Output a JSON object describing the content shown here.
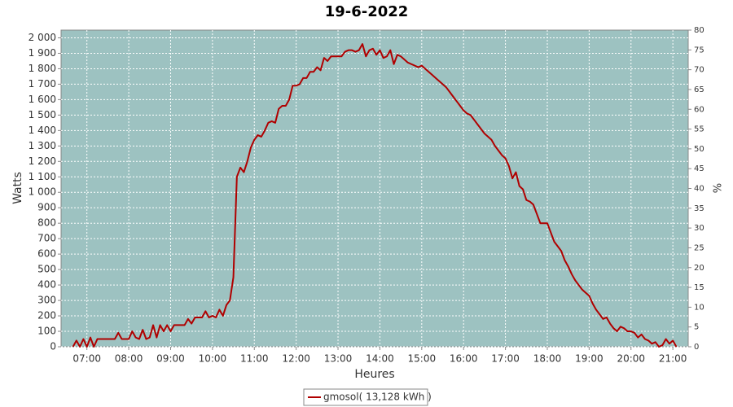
{
  "chart_data": {
    "type": "line",
    "title": "19-6-2022",
    "xlabel": "Heures",
    "ylabel": "Watts",
    "y2label": "%",
    "background": "#9dc2c1",
    "grid": true,
    "x": [
      "06:40",
      "06:45",
      "06:50",
      "06:55",
      "07:00",
      "07:05",
      "07:10",
      "07:15",
      "07:20",
      "07:25",
      "07:30",
      "07:35",
      "07:40",
      "07:45",
      "07:50",
      "07:55",
      "08:00",
      "08:05",
      "08:10",
      "08:15",
      "08:20",
      "08:25",
      "08:30",
      "08:35",
      "08:40",
      "08:45",
      "08:50",
      "08:55",
      "09:00",
      "09:05",
      "09:10",
      "09:15",
      "09:20",
      "09:25",
      "09:30",
      "09:35",
      "09:40",
      "09:45",
      "09:50",
      "09:55",
      "10:00",
      "10:05",
      "10:10",
      "10:15",
      "10:20",
      "10:25",
      "10:30",
      "10:35",
      "10:40",
      "10:45",
      "10:50",
      "10:55",
      "11:00",
      "11:05",
      "11:10",
      "11:15",
      "11:20",
      "11:25",
      "11:30",
      "11:35",
      "11:40",
      "11:45",
      "11:50",
      "11:55",
      "12:00",
      "12:05",
      "12:10",
      "12:15",
      "12:20",
      "12:25",
      "12:30",
      "12:35",
      "12:40",
      "12:45",
      "12:50",
      "12:55",
      "13:00",
      "13:05",
      "13:10",
      "13:15",
      "13:20",
      "13:25",
      "13:30",
      "13:35",
      "13:40",
      "13:45",
      "13:50",
      "13:55",
      "14:00",
      "14:05",
      "14:10",
      "14:15",
      "14:20",
      "14:25",
      "14:30",
      "14:35",
      "14:40",
      "14:45",
      "14:50",
      "14:55",
      "15:00",
      "15:05",
      "15:10",
      "15:15",
      "15:20",
      "15:25",
      "15:30",
      "15:35",
      "15:40",
      "15:45",
      "15:50",
      "15:55",
      "16:00",
      "16:05",
      "16:10",
      "16:15",
      "16:20",
      "16:25",
      "16:30",
      "16:35",
      "16:40",
      "16:45",
      "16:50",
      "16:55",
      "17:00",
      "17:05",
      "17:10",
      "17:15",
      "17:20",
      "17:25",
      "17:30",
      "17:35",
      "17:40",
      "17:45",
      "17:50",
      "17:55",
      "18:00",
      "18:05",
      "18:10",
      "18:15",
      "18:20",
      "18:25",
      "18:30",
      "18:35",
      "18:40",
      "18:45",
      "18:50",
      "18:55",
      "19:00",
      "19:05",
      "19:10",
      "19:15",
      "19:20",
      "19:25",
      "19:30",
      "19:35",
      "19:40",
      "19:45",
      "19:50",
      "19:55",
      "20:00",
      "20:05",
      "20:10",
      "20:15",
      "20:20",
      "20:25",
      "20:30",
      "20:35",
      "20:40",
      "20:45",
      "20:50",
      "20:55",
      "21:00",
      "21:05"
    ],
    "series": [
      {
        "name": "gmosol( 13,128 kWh )",
        "color": "#b00000",
        "values": [
          0,
          40,
          0,
          50,
          0,
          60,
          0,
          50,
          50,
          50,
          50,
          50,
          50,
          90,
          50,
          50,
          50,
          100,
          60,
          50,
          110,
          50,
          60,
          140,
          60,
          140,
          100,
          140,
          100,
          140,
          140,
          140,
          140,
          180,
          150,
          190,
          190,
          190,
          230,
          190,
          200,
          190,
          240,
          200,
          270,
          300,
          450,
          1100,
          1160,
          1130,
          1200,
          1290,
          1340,
          1370,
          1360,
          1400,
          1450,
          1460,
          1450,
          1540,
          1560,
          1560,
          1600,
          1690,
          1690,
          1700,
          1740,
          1740,
          1780,
          1780,
          1810,
          1790,
          1870,
          1850,
          1880,
          1880,
          1880,
          1880,
          1910,
          1920,
          1920,
          1910,
          1920,
          1960,
          1880,
          1920,
          1930,
          1890,
          1920,
          1870,
          1880,
          1920,
          1830,
          1890,
          1880,
          1860,
          1840,
          1830,
          1820,
          1810,
          1820,
          1800,
          1780,
          1760,
          1740,
          1720,
          1700,
          1680,
          1650,
          1620,
          1590,
          1560,
          1530,
          1510,
          1500,
          1470,
          1440,
          1410,
          1380,
          1360,
          1340,
          1300,
          1270,
          1240,
          1220,
          1170,
          1090,
          1130,
          1040,
          1020,
          950,
          940,
          920,
          860,
          800,
          800,
          800,
          740,
          680,
          650,
          620,
          560,
          520,
          470,
          430,
          400,
          370,
          350,
          330,
          280,
          240,
          210,
          180,
          190,
          150,
          120,
          100,
          130,
          120,
          100,
          100,
          90,
          60,
          80,
          50,
          40,
          20,
          30,
          0,
          10,
          50,
          20,
          40,
          0
        ]
      }
    ],
    "xlim": [
      "06:23",
      "21:22"
    ],
    "xticks": [
      "07:00",
      "08:00",
      "09:00",
      "10:00",
      "11:00",
      "12:00",
      "13:00",
      "14:00",
      "15:00",
      "16:00",
      "17:00",
      "18:00",
      "19:00",
      "20:00",
      "21:00"
    ],
    "ylim": [
      0,
      2050
    ],
    "yticks": [
      0,
      100,
      200,
      300,
      400,
      500,
      600,
      700,
      800,
      900,
      {
        "value": 1000,
        "label": "1 000"
      },
      {
        "value": 1100,
        "label": "1 100"
      },
      {
        "value": 1200,
        "label": "1 200"
      },
      {
        "value": 1300,
        "label": "1 300"
      },
      {
        "value": 1400,
        "label": "1 400"
      },
      {
        "value": 1500,
        "label": "1 500"
      },
      {
        "value": 1600,
        "label": "1 600"
      },
      {
        "value": 1700,
        "label": "1 700"
      },
      {
        "value": 1800,
        "label": "1 800"
      },
      {
        "value": 1900,
        "label": "1 900"
      },
      {
        "value": 2000,
        "label": "2 000"
      }
    ],
    "y2lim": [
      0,
      80
    ],
    "y2ticks": [
      0,
      5,
      10,
      15,
      20,
      25,
      30,
      35,
      40,
      45,
      50,
      55,
      60,
      65,
      70,
      75,
      80
    ]
  }
}
